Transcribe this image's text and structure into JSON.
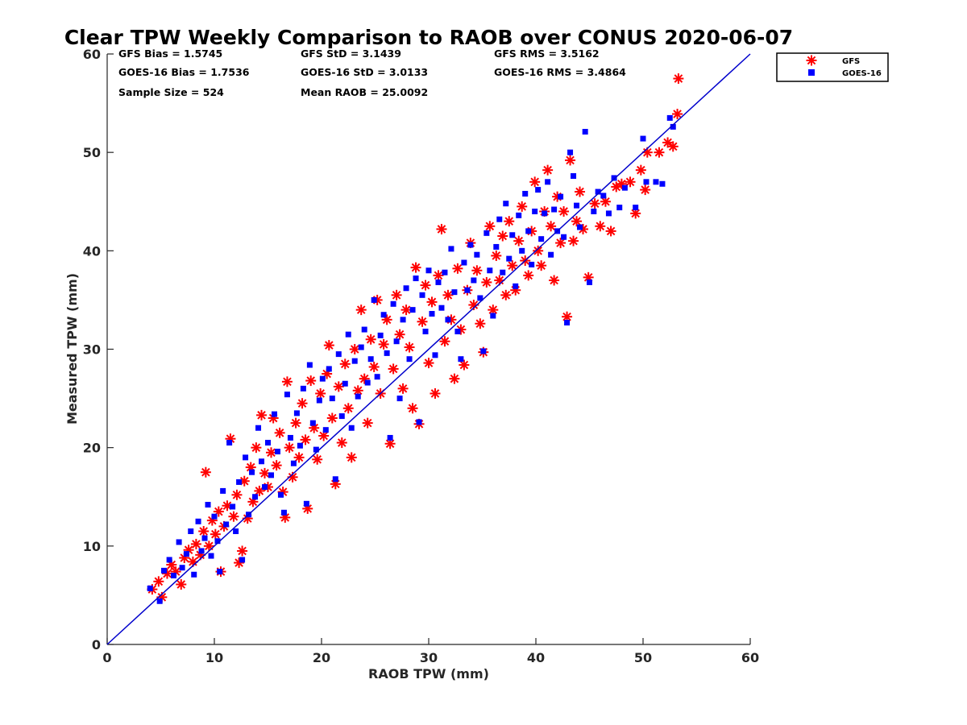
{
  "chart_data": {
    "type": "scatter",
    "title": "Clear TPW Weekly Comparison to RAOB over CONUS 2020-06-07",
    "xlabel": "RAOB TPW (mm)",
    "ylabel": "Measured TPW (mm)",
    "xlim": [
      0,
      60
    ],
    "ylim": [
      0,
      60
    ],
    "xticks": [
      "0",
      "10",
      "20",
      "30",
      "40",
      "50",
      "60"
    ],
    "yticks": [
      "0",
      "10",
      "20",
      "30",
      "40",
      "50",
      "60"
    ],
    "grid": false,
    "legend_position": "top-right (outside plot)",
    "reference_line": {
      "name": "1:1 line",
      "color": "#0000cc",
      "x": [
        0,
        60
      ],
      "y": [
        0,
        60
      ]
    },
    "stats": [
      {
        "label": "GFS Bias = 1.5745"
      },
      {
        "label": "GFS StD = 3.1439"
      },
      {
        "label": "GFS RMS = 3.5162"
      },
      {
        "label": "GOES-16 Bias = 1.7536"
      },
      {
        "label": "GOES-16 StD = 3.0133"
      },
      {
        "label": "GOES-16 RMS = 3.4864"
      },
      {
        "label": "Sample Size = 524"
      },
      {
        "label": "Mean RAOB = 25.0092"
      }
    ],
    "series": [
      {
        "name": "GFS",
        "marker": "asterisk",
        "color": "#ff0000",
        "points": [
          [
            4.2,
            5.6
          ],
          [
            4.8,
            6.4
          ],
          [
            5.1,
            4.8
          ],
          [
            5.6,
            7.2
          ],
          [
            6.0,
            8.1
          ],
          [
            6.4,
            7.4
          ],
          [
            6.9,
            6.1
          ],
          [
            7.2,
            8.8
          ],
          [
            7.6,
            9.6
          ],
          [
            8.0,
            8.4
          ],
          [
            8.3,
            10.2
          ],
          [
            8.7,
            9.1
          ],
          [
            9.0,
            11.5
          ],
          [
            9.2,
            17.5
          ],
          [
            9.5,
            10.0
          ],
          [
            9.8,
            12.6
          ],
          [
            10.1,
            11.2
          ],
          [
            10.4,
            13.5
          ],
          [
            10.6,
            7.4
          ],
          [
            10.9,
            12.0
          ],
          [
            11.2,
            14.1
          ],
          [
            11.5,
            20.9
          ],
          [
            11.8,
            13.0
          ],
          [
            12.1,
            15.2
          ],
          [
            12.3,
            8.3
          ],
          [
            12.6,
            9.5
          ],
          [
            12.8,
            16.6
          ],
          [
            13.1,
            12.8
          ],
          [
            13.4,
            18.0
          ],
          [
            13.6,
            14.5
          ],
          [
            13.9,
            20.0
          ],
          [
            14.2,
            15.6
          ],
          [
            14.4,
            23.3
          ],
          [
            14.7,
            17.4
          ],
          [
            15.0,
            16.0
          ],
          [
            15.3,
            19.5
          ],
          [
            15.5,
            23.0
          ],
          [
            15.8,
            18.2
          ],
          [
            16.1,
            21.5
          ],
          [
            16.4,
            15.5
          ],
          [
            16.6,
            12.9
          ],
          [
            16.8,
            26.7
          ],
          [
            17.0,
            20.0
          ],
          [
            17.3,
            17.0
          ],
          [
            17.6,
            22.5
          ],
          [
            17.9,
            19.0
          ],
          [
            18.2,
            24.5
          ],
          [
            18.5,
            20.8
          ],
          [
            18.7,
            13.8
          ],
          [
            19.0,
            26.8
          ],
          [
            19.3,
            22.0
          ],
          [
            19.6,
            18.8
          ],
          [
            19.9,
            25.5
          ],
          [
            20.2,
            21.2
          ],
          [
            20.5,
            27.5
          ],
          [
            20.7,
            30.4
          ],
          [
            21.0,
            23.0
          ],
          [
            21.3,
            16.3
          ],
          [
            21.6,
            26.2
          ],
          [
            21.9,
            20.5
          ],
          [
            22.2,
            28.5
          ],
          [
            22.5,
            24.0
          ],
          [
            22.8,
            19.0
          ],
          [
            23.1,
            30.0
          ],
          [
            23.4,
            25.8
          ],
          [
            23.7,
            34.0
          ],
          [
            24.0,
            27.0
          ],
          [
            24.3,
            22.5
          ],
          [
            24.6,
            31.0
          ],
          [
            24.9,
            28.2
          ],
          [
            25.2,
            35.0
          ],
          [
            25.5,
            25.5
          ],
          [
            25.8,
            30.5
          ],
          [
            26.1,
            33.0
          ],
          [
            26.4,
            20.4
          ],
          [
            26.7,
            28.0
          ],
          [
            27.0,
            35.5
          ],
          [
            27.3,
            31.5
          ],
          [
            27.6,
            26.0
          ],
          [
            27.9,
            34.0
          ],
          [
            28.2,
            30.2
          ],
          [
            28.5,
            24.0
          ],
          [
            28.8,
            38.3
          ],
          [
            29.1,
            22.4
          ],
          [
            29.4,
            32.8
          ],
          [
            29.7,
            36.5
          ],
          [
            30.0,
            28.6
          ],
          [
            30.3,
            34.8
          ],
          [
            30.6,
            25.5
          ],
          [
            30.9,
            37.5
          ],
          [
            31.2,
            42.2
          ],
          [
            31.5,
            30.8
          ],
          [
            31.8,
            35.5
          ],
          [
            32.1,
            33.0
          ],
          [
            32.4,
            27.0
          ],
          [
            32.7,
            38.2
          ],
          [
            33.0,
            32.0
          ],
          [
            33.3,
            28.4
          ],
          [
            33.6,
            36.0
          ],
          [
            33.9,
            40.8
          ],
          [
            34.2,
            34.5
          ],
          [
            34.5,
            38.0
          ],
          [
            34.8,
            32.6
          ],
          [
            35.1,
            29.7
          ],
          [
            35.4,
            36.8
          ],
          [
            35.7,
            42.5
          ],
          [
            36.0,
            34.0
          ],
          [
            36.3,
            39.5
          ],
          [
            36.6,
            37.0
          ],
          [
            36.9,
            41.5
          ],
          [
            37.2,
            35.5
          ],
          [
            37.5,
            43.0
          ],
          [
            37.8,
            38.5
          ],
          [
            38.1,
            36.0
          ],
          [
            38.4,
            41.0
          ],
          [
            38.7,
            44.5
          ],
          [
            39.0,
            39.0
          ],
          [
            39.3,
            37.5
          ],
          [
            39.6,
            42.0
          ],
          [
            39.9,
            47.0
          ],
          [
            40.2,
            40.0
          ],
          [
            40.5,
            38.5
          ],
          [
            40.8,
            44.0
          ],
          [
            41.1,
            48.2
          ],
          [
            41.4,
            42.5
          ],
          [
            41.7,
            37.0
          ],
          [
            42.0,
            45.5
          ],
          [
            42.3,
            40.8
          ],
          [
            42.6,
            44.0
          ],
          [
            42.9,
            33.3
          ],
          [
            43.2,
            49.2
          ],
          [
            43.5,
            41.0
          ],
          [
            43.8,
            43.0
          ],
          [
            44.1,
            46.0
          ],
          [
            44.4,
            42.2
          ],
          [
            44.9,
            37.3
          ],
          [
            45.5,
            44.8
          ],
          [
            46.0,
            42.5
          ],
          [
            46.5,
            45.0
          ],
          [
            47.0,
            42.0
          ],
          [
            47.5,
            46.5
          ],
          [
            48.0,
            46.8
          ],
          [
            48.8,
            47.0
          ],
          [
            49.3,
            43.8
          ],
          [
            49.8,
            48.2
          ],
          [
            50.2,
            46.2
          ],
          [
            50.4,
            50.0
          ],
          [
            51.5,
            50.0
          ],
          [
            52.3,
            51.0
          ],
          [
            52.8,
            50.6
          ],
          [
            53.2,
            53.9
          ],
          [
            53.3,
            57.5
          ]
        ]
      },
      {
        "name": "GOES-16",
        "marker": "square",
        "color": "#0000ff",
        "points": [
          [
            4.0,
            5.7
          ],
          [
            4.9,
            4.4
          ],
          [
            5.3,
            7.5
          ],
          [
            5.8,
            8.6
          ],
          [
            6.2,
            7.0
          ],
          [
            6.7,
            10.4
          ],
          [
            7.0,
            7.8
          ],
          [
            7.4,
            9.2
          ],
          [
            7.8,
            11.5
          ],
          [
            8.1,
            7.1
          ],
          [
            8.5,
            12.5
          ],
          [
            8.8,
            9.5
          ],
          [
            9.1,
            10.8
          ],
          [
            9.4,
            14.2
          ],
          [
            9.7,
            9.0
          ],
          [
            10.0,
            13.0
          ],
          [
            10.3,
            10.5
          ],
          [
            10.5,
            7.4
          ],
          [
            10.8,
            15.6
          ],
          [
            11.1,
            12.2
          ],
          [
            11.4,
            20.5
          ],
          [
            11.7,
            14.0
          ],
          [
            12.0,
            11.5
          ],
          [
            12.3,
            16.5
          ],
          [
            12.6,
            8.6
          ],
          [
            12.9,
            19.0
          ],
          [
            13.2,
            13.2
          ],
          [
            13.5,
            17.5
          ],
          [
            13.8,
            15.0
          ],
          [
            14.1,
            22.0
          ],
          [
            14.4,
            18.6
          ],
          [
            14.7,
            16.0
          ],
          [
            15.0,
            20.5
          ],
          [
            15.3,
            17.2
          ],
          [
            15.6,
            23.4
          ],
          [
            15.9,
            19.6
          ],
          [
            16.2,
            15.2
          ],
          [
            16.5,
            13.4
          ],
          [
            16.8,
            25.4
          ],
          [
            17.1,
            21.0
          ],
          [
            17.4,
            18.4
          ],
          [
            17.7,
            23.5
          ],
          [
            18.0,
            20.2
          ],
          [
            18.3,
            26.0
          ],
          [
            18.6,
            14.3
          ],
          [
            18.9,
            28.4
          ],
          [
            19.2,
            22.5
          ],
          [
            19.5,
            19.8
          ],
          [
            19.8,
            24.8
          ],
          [
            20.1,
            27.0
          ],
          [
            20.4,
            21.8
          ],
          [
            20.7,
            28.0
          ],
          [
            21.0,
            25.0
          ],
          [
            21.3,
            16.8
          ],
          [
            21.6,
            29.5
          ],
          [
            21.9,
            23.2
          ],
          [
            22.2,
            26.5
          ],
          [
            22.5,
            31.5
          ],
          [
            22.8,
            22.0
          ],
          [
            23.1,
            28.8
          ],
          [
            23.4,
            25.2
          ],
          [
            23.7,
            30.2
          ],
          [
            24.0,
            32.0
          ],
          [
            24.3,
            26.6
          ],
          [
            24.6,
            29.0
          ],
          [
            24.9,
            35.0
          ],
          [
            25.2,
            27.2
          ],
          [
            25.5,
            31.4
          ],
          [
            25.8,
            33.5
          ],
          [
            26.1,
            29.6
          ],
          [
            26.4,
            21.0
          ],
          [
            26.7,
            34.6
          ],
          [
            27.0,
            30.8
          ],
          [
            27.3,
            25.0
          ],
          [
            27.6,
            33.0
          ],
          [
            27.9,
            36.2
          ],
          [
            28.2,
            29.0
          ],
          [
            28.5,
            34.0
          ],
          [
            28.8,
            37.2
          ],
          [
            29.1,
            22.6
          ],
          [
            29.4,
            35.5
          ],
          [
            29.7,
            31.8
          ],
          [
            30.0,
            38.0
          ],
          [
            30.3,
            33.6
          ],
          [
            30.6,
            29.4
          ],
          [
            30.9,
            36.8
          ],
          [
            31.2,
            34.2
          ],
          [
            31.5,
            37.8
          ],
          [
            31.8,
            33.0
          ],
          [
            32.1,
            40.2
          ],
          [
            32.4,
            35.8
          ],
          [
            32.7,
            31.8
          ],
          [
            33.0,
            29.0
          ],
          [
            33.3,
            38.8
          ],
          [
            33.6,
            36.0
          ],
          [
            33.9,
            40.6
          ],
          [
            34.2,
            37.0
          ],
          [
            34.5,
            39.6
          ],
          [
            34.8,
            35.2
          ],
          [
            35.1,
            29.8
          ],
          [
            35.4,
            41.8
          ],
          [
            35.7,
            38.0
          ],
          [
            36.0,
            33.4
          ],
          [
            36.3,
            40.4
          ],
          [
            36.6,
            43.2
          ],
          [
            36.9,
            37.8
          ],
          [
            37.2,
            44.8
          ],
          [
            37.5,
            39.2
          ],
          [
            37.8,
            41.6
          ],
          [
            38.1,
            36.4
          ],
          [
            38.4,
            43.6
          ],
          [
            38.7,
            40.0
          ],
          [
            39.0,
            45.8
          ],
          [
            39.3,
            42.0
          ],
          [
            39.6,
            38.6
          ],
          [
            39.9,
            44.0
          ],
          [
            40.2,
            46.2
          ],
          [
            40.5,
            41.2
          ],
          [
            40.8,
            43.8
          ],
          [
            41.1,
            47.0
          ],
          [
            41.4,
            39.6
          ],
          [
            41.7,
            44.2
          ],
          [
            42.0,
            42.0
          ],
          [
            42.3,
            45.5
          ],
          [
            42.6,
            41.4
          ],
          [
            42.9,
            32.7
          ],
          [
            43.2,
            50.0
          ],
          [
            43.5,
            47.6
          ],
          [
            43.8,
            44.6
          ],
          [
            44.1,
            42.4
          ],
          [
            44.6,
            52.1
          ],
          [
            45.0,
            36.8
          ],
          [
            45.4,
            44.0
          ],
          [
            45.8,
            46.0
          ],
          [
            46.3,
            45.6
          ],
          [
            46.8,
            43.8
          ],
          [
            47.3,
            47.4
          ],
          [
            47.8,
            44.4
          ],
          [
            48.3,
            46.4
          ],
          [
            49.3,
            44.4
          ],
          [
            50.0,
            51.4
          ],
          [
            50.3,
            47.0
          ],
          [
            51.2,
            47.0
          ],
          [
            51.8,
            46.8
          ],
          [
            52.5,
            53.5
          ],
          [
            52.8,
            52.6
          ]
        ]
      }
    ],
    "legend": [
      {
        "label": "GFS",
        "marker": "asterisk",
        "color": "#ff0000"
      },
      {
        "label": "GOES-16",
        "marker": "square",
        "color": "#0000ff"
      }
    ]
  }
}
